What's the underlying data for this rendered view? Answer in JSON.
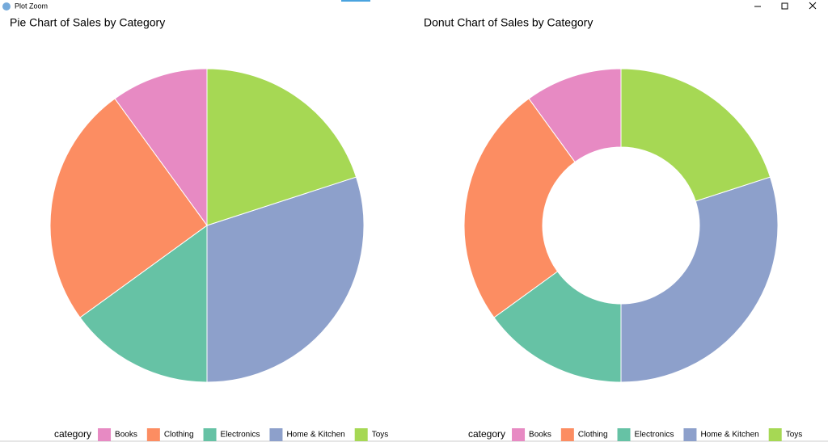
{
  "window": {
    "title": "Plot Zoom"
  },
  "chart_data": [
    {
      "type": "pie",
      "title": "Pie Chart of Sales by Category",
      "legend_title": "category",
      "categories": [
        "Books",
        "Clothing",
        "Electronics",
        "Home & Kitchen",
        "Toys"
      ],
      "values": [
        10,
        25,
        15,
        30,
        20
      ],
      "colors": [
        "#e78ac3",
        "#fc8d62",
        "#66c2a5",
        "#8da0cb",
        "#a6d854"
      ]
    },
    {
      "type": "donut",
      "title": "Donut Chart of Sales by Category",
      "legend_title": "category",
      "categories": [
        "Books",
        "Clothing",
        "Electronics",
        "Home & Kitchen",
        "Toys"
      ],
      "values": [
        10,
        25,
        15,
        30,
        20
      ],
      "colors": [
        "#e78ac3",
        "#fc8d62",
        "#66c2a5",
        "#8da0cb",
        "#a6d854"
      ]
    }
  ]
}
